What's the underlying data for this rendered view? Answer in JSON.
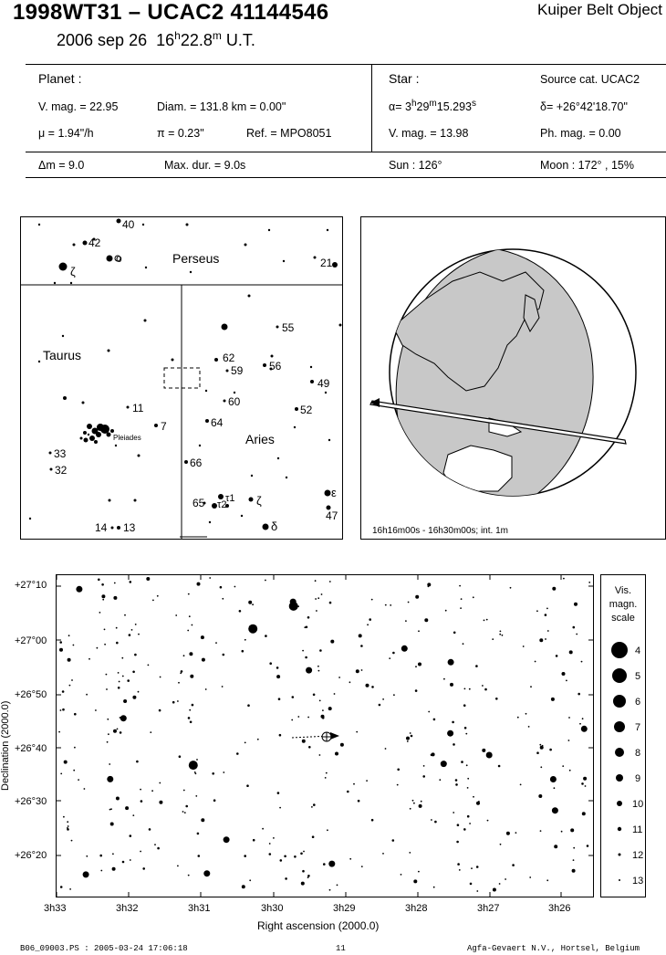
{
  "header": {
    "title": "1998WT31  –  UCAC2 41144546",
    "date": "2006 sep 26",
    "time_h": "16",
    "time_hsup": "h",
    "time_m": "22.8",
    "time_msup": "m",
    "time_ut": "U.T.",
    "object_type": "Kuiper Belt Object"
  },
  "planet": {
    "heading": "Planet :",
    "vmag": "V. mag. = 22.95",
    "diam": "Diam. = 131.8 km = 0.00\"",
    "mu": "μ =  1.94\"/h",
    "pi": "π =  0.23\"",
    "ref": "Ref. = MPO8051"
  },
  "star": {
    "heading": "Star :",
    "source": "Source cat.  UCAC2",
    "alpha_prefix": "α=  3",
    "alpha_h": "h",
    "alpha_mid": "29",
    "alpha_m": "m",
    "alpha_sec": "15.293",
    "alpha_s": "s",
    "delta": "δ= +26°42'18.70\"",
    "vmag": "V. mag. = 13.98",
    "phmag": "Ph. mag. =  0.00"
  },
  "circumstances": {
    "dm": "Δm = 9.0",
    "maxdur": "Max. dur. = 9.0s",
    "sun": "Sun : 126°",
    "moon": "Moon : 172° , 15%"
  },
  "finder_chart": {
    "constellations": [
      "Perseus",
      "Taurus",
      "Aries"
    ],
    "pleiades_label": "Pleiades",
    "star_labels": [
      "40",
      "42",
      "ζ",
      "o",
      "21",
      "55",
      "62",
      "59",
      "56",
      "49",
      "11",
      "7",
      "60",
      "52",
      "64",
      "33",
      "32",
      "66",
      "65",
      "τ1",
      "τ2",
      "ζ",
      "ε",
      "47",
      "14",
      "13",
      "δ"
    ]
  },
  "globe": {
    "caption": "16h16m00s - 16h30m00s; int.  1m"
  },
  "star_chart": {
    "dec_labels": [
      "+27°10",
      "+27°00",
      "+26°50",
      "+26°40",
      "+26°30",
      "+26°20"
    ],
    "ra_labels": [
      "3h33",
      "3h32",
      "3h31",
      "3h30",
      "3h29",
      "3h28",
      "3h27",
      "3h26"
    ],
    "xlabel": "Right ascension (2000.0)",
    "ylabel": "Declination (2000.0)"
  },
  "mag_scale": {
    "title_lines": [
      "Vis.",
      "magn.",
      "scale"
    ],
    "mags": [
      "4",
      "5",
      "6",
      "7",
      "8",
      "9",
      "10",
      "11",
      "12",
      "13"
    ]
  },
  "footer": {
    "left": "B06_09003.PS : 2005-03-24 17:06:18",
    "page": "11",
    "right": "Agfa-Gevaert N.V., Hortsel, Belgium"
  }
}
